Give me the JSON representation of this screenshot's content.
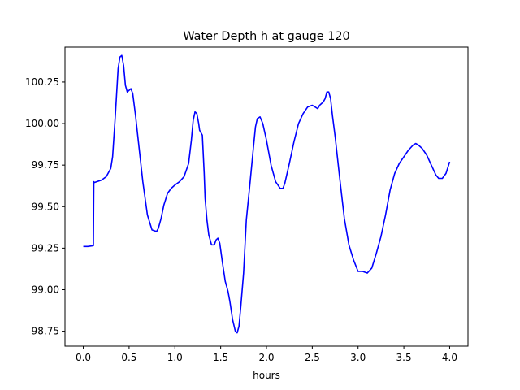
{
  "chart_data": {
    "type": "line",
    "title": "Water Depth h at gauge 120",
    "xlabel": "hours",
    "ylabel": "",
    "xlim": [
      -0.2,
      4.2
    ],
    "ylim": [
      98.66,
      100.46
    ],
    "grid": false,
    "legend": "none",
    "colors": {
      "line": "#0000ff",
      "axes": "#000000",
      "background": "#ffffff"
    },
    "xticks": [
      0.0,
      0.5,
      1.0,
      1.5,
      2.0,
      2.5,
      3.0,
      3.5,
      4.0
    ],
    "xtick_labels": [
      "0.0",
      "0.5",
      "1.0",
      "1.5",
      "2.0",
      "2.5",
      "3.0",
      "3.5",
      "4.0"
    ],
    "yticks": [
      98.75,
      99.0,
      99.25,
      99.5,
      99.75,
      100.0,
      100.25
    ],
    "ytick_labels": [
      "98.75",
      "99.00",
      "99.25",
      "99.50",
      "99.75",
      "100.00",
      "100.25"
    ],
    "series": [
      {
        "x": [
          0.0,
          0.05,
          0.11,
          0.115,
          0.12,
          0.2,
          0.25,
          0.3,
          0.32,
          0.35,
          0.38,
          0.4,
          0.42,
          0.44,
          0.46,
          0.48,
          0.5,
          0.52,
          0.54,
          0.57,
          0.6,
          0.65,
          0.7,
          0.75,
          0.8,
          0.82,
          0.85,
          0.88,
          0.92,
          0.96,
          1.0,
          1.05,
          1.1,
          1.15,
          1.18,
          1.2,
          1.22,
          1.24,
          1.26,
          1.27,
          1.28,
          1.3,
          1.32,
          1.33,
          1.35,
          1.37,
          1.4,
          1.43,
          1.45,
          1.47,
          1.49,
          1.5,
          1.52,
          1.55,
          1.58,
          1.6,
          1.63,
          1.66,
          1.68,
          1.7,
          1.72,
          1.75,
          1.78,
          1.82,
          1.86,
          1.88,
          1.9,
          1.93,
          1.96,
          2.0,
          2.05,
          2.1,
          2.15,
          2.18,
          2.2,
          2.25,
          2.3,
          2.35,
          2.4,
          2.45,
          2.5,
          2.53,
          2.56,
          2.58,
          2.6,
          2.62,
          2.64,
          2.66,
          2.68,
          2.7,
          2.72,
          2.75,
          2.8,
          2.85,
          2.9,
          2.95,
          3.0,
          3.05,
          3.1,
          3.15,
          3.2,
          3.25,
          3.3,
          3.35,
          3.4,
          3.45,
          3.5,
          3.55,
          3.6,
          3.63,
          3.66,
          3.7,
          3.75,
          3.8,
          3.85,
          3.88,
          3.92,
          3.96,
          4.0
        ],
        "y": [
          99.26,
          99.26,
          99.265,
          99.65,
          99.645,
          99.66,
          99.68,
          99.73,
          99.8,
          100.05,
          100.33,
          100.4,
          100.41,
          100.35,
          100.23,
          100.19,
          100.2,
          100.21,
          100.18,
          100.05,
          99.9,
          99.65,
          99.45,
          99.36,
          99.35,
          99.37,
          99.43,
          99.51,
          99.58,
          99.61,
          99.63,
          99.65,
          99.68,
          99.76,
          99.9,
          100.02,
          100.07,
          100.06,
          100.0,
          99.96,
          99.95,
          99.93,
          99.7,
          99.55,
          99.42,
          99.33,
          99.27,
          99.27,
          99.3,
          99.31,
          99.28,
          99.24,
          99.16,
          99.05,
          98.99,
          98.93,
          98.82,
          98.75,
          98.74,
          98.78,
          98.9,
          99.1,
          99.42,
          99.64,
          99.87,
          99.98,
          100.03,
          100.04,
          100.0,
          99.9,
          99.75,
          99.65,
          99.61,
          99.61,
          99.64,
          99.76,
          99.89,
          100.0,
          100.06,
          100.1,
          100.11,
          100.1,
          100.09,
          100.11,
          100.12,
          100.13,
          100.15,
          100.19,
          100.19,
          100.15,
          100.05,
          99.92,
          99.67,
          99.43,
          99.27,
          99.18,
          99.11,
          99.11,
          99.1,
          99.13,
          99.22,
          99.32,
          99.45,
          99.6,
          99.7,
          99.76,
          99.8,
          99.84,
          99.87,
          99.88,
          99.87,
          99.85,
          99.81,
          99.75,
          99.69,
          99.67,
          99.67,
          99.7,
          99.77
        ]
      }
    ]
  }
}
